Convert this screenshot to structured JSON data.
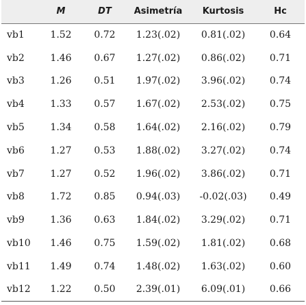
{
  "table": {
    "headers": [
      "",
      "M",
      "DT",
      "Asimetría",
      "Kurtosis",
      "Hc"
    ],
    "rows": [
      [
        "vb1",
        "1.52",
        "0.72",
        "1.23(.02)",
        "0.81(.02)",
        "0.64"
      ],
      [
        "vb2",
        "1.46",
        "0.67",
        "1.27(.02)",
        "0.86(.02)",
        "0.71"
      ],
      [
        "vb3",
        "1.26",
        "0.51",
        "1.97(.02)",
        "3.96(.02)",
        "0.74"
      ],
      [
        "vb4",
        "1.33",
        "0.57",
        "1.67(.02)",
        "2.53(.02)",
        "0.75"
      ],
      [
        "vb5",
        "1.34",
        "0.58",
        "1.64(.02)",
        "2.16(.02)",
        "0.79"
      ],
      [
        "vb6",
        "1.27",
        "0.53",
        "1.88(.02)",
        "3.27(.02)",
        "0.74"
      ],
      [
        "vb7",
        "1.27",
        "0.52",
        "1.96(.02)",
        "3.86(.02)",
        "0.71"
      ],
      [
        "vb8",
        "1.72",
        "0.85",
        "0.94(.03)",
        "-0.02(.03)",
        "0.49"
      ],
      [
        "vb9",
        "1.36",
        "0.63",
        "1.84(.02)",
        "3.29(.02)",
        "0.71"
      ],
      [
        "vb10",
        "1.46",
        "0.75",
        "1.59(.02)",
        "1.81(.02)",
        "0.68"
      ],
      [
        "vb11",
        "1.49",
        "0.74",
        "1.48(.02)",
        "1.63(.02)",
        "0.60"
      ],
      [
        "vb12",
        "1.22",
        "0.50",
        "2.39(.01)",
        "6.09(.01)",
        "0.66"
      ]
    ]
  }
}
